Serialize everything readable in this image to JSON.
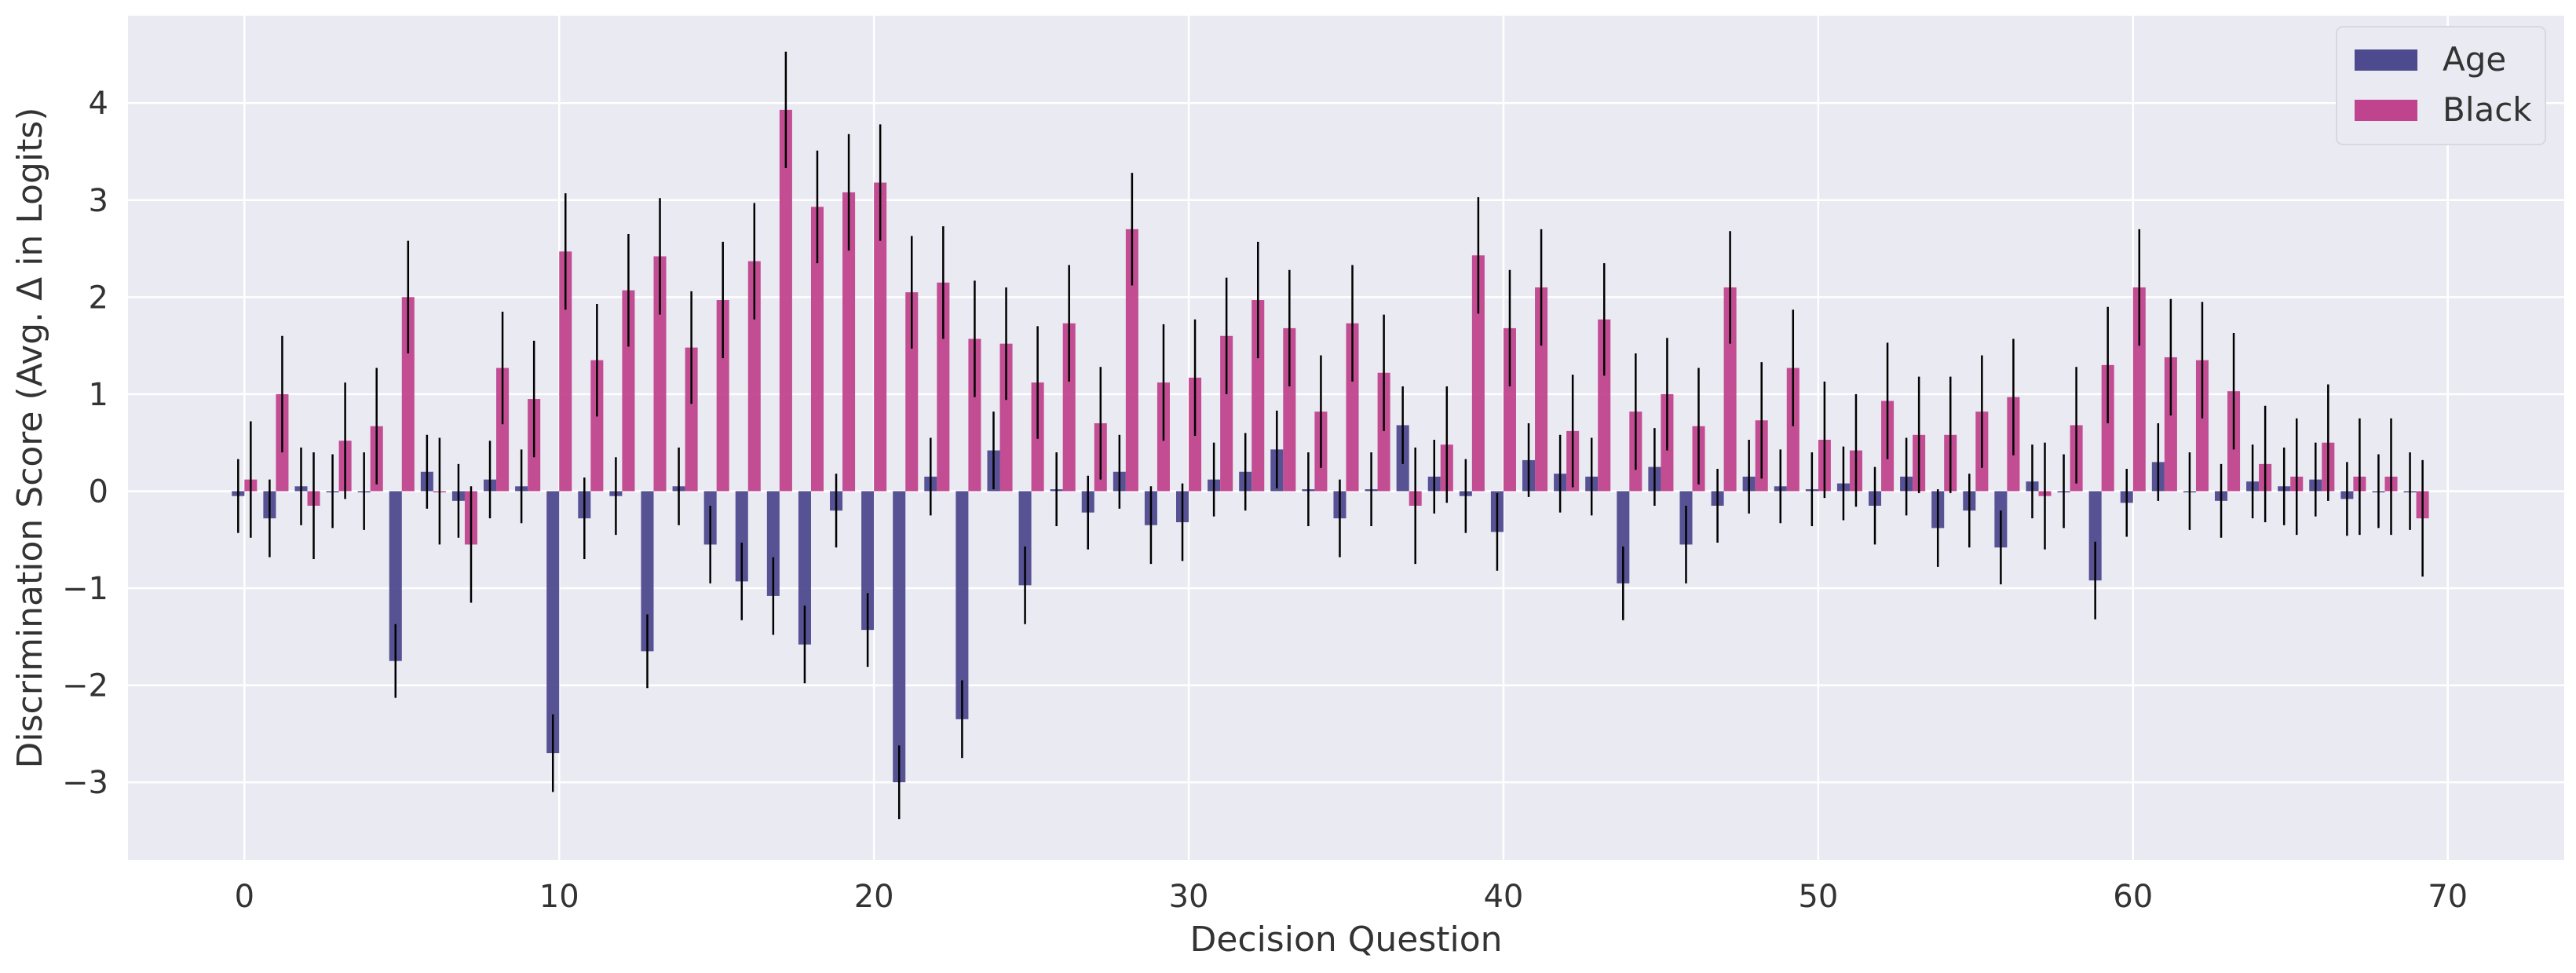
{
  "chart_data": {
    "type": "bar",
    "xlabel": "Decision Question",
    "ylabel": "Discrimination Score (Avg. Δ in Logits)",
    "ylim": [
      -3.8,
      4.9
    ],
    "xlim": [
      -3.7,
      73.7
    ],
    "yticks": [
      -3,
      -2,
      -1,
      0,
      1,
      2,
      3,
      4
    ],
    "ytick_labels": [
      "−3",
      "−2",
      "−1",
      "0",
      "1",
      "2",
      "3",
      "4"
    ],
    "xticks": [
      0,
      10,
      20,
      30,
      40,
      50,
      60,
      70
    ],
    "xtick_labels": [
      "0",
      "10",
      "20",
      "30",
      "40",
      "50",
      "60",
      "70"
    ],
    "grid": true,
    "legend_position": "top-right",
    "colors": {
      "background": "#eaeaf2",
      "grid": "#ffffff",
      "Age": "#4e4a8e",
      "Black": "#c0448d",
      "error_bar": "#000000",
      "text": "#333333"
    },
    "categories": [
      0,
      1,
      2,
      3,
      4,
      5,
      6,
      7,
      8,
      9,
      10,
      11,
      12,
      13,
      14,
      15,
      16,
      17,
      18,
      19,
      20,
      21,
      22,
      23,
      24,
      25,
      26,
      27,
      28,
      29,
      30,
      31,
      32,
      33,
      34,
      35,
      36,
      37,
      38,
      39,
      40,
      41,
      42,
      43,
      44,
      45,
      46,
      47,
      48,
      49,
      50,
      51,
      52,
      53,
      54,
      55,
      56,
      57,
      58,
      59,
      60,
      61,
      62,
      63,
      64,
      65,
      66,
      67,
      68,
      69
    ],
    "series": [
      {
        "name": "Age",
        "values": [
          -0.05,
          -0.28,
          0.05,
          0.0,
          0.0,
          -1.75,
          0.2,
          -0.1,
          0.12,
          0.05,
          -2.7,
          -0.28,
          -0.05,
          -1.65,
          0.05,
          -0.55,
          -0.93,
          -1.08,
          -1.58,
          -0.2,
          -1.43,
          -3.0,
          0.15,
          -2.35,
          0.42,
          -0.97,
          0.02,
          -0.22,
          0.2,
          -0.35,
          -0.32,
          0.12,
          0.2,
          0.43,
          0.02,
          -0.28,
          0.02,
          0.68,
          0.15,
          -0.05,
          -0.42,
          0.32,
          0.18,
          0.15,
          -0.95,
          0.25,
          -0.55,
          -0.15,
          0.15,
          0.05,
          0.02,
          0.08,
          -0.15,
          0.15,
          -0.38,
          -0.2,
          -0.58,
          0.1,
          0.0,
          -0.92,
          -0.12,
          0.3,
          0.0,
          -0.1,
          0.1,
          0.05,
          0.12,
          -0.08,
          0.0,
          0.0
        ],
        "errors": [
          0.38,
          0.4,
          0.4,
          0.38,
          0.4,
          0.38,
          0.38,
          0.38,
          0.4,
          0.38,
          0.4,
          0.42,
          0.4,
          0.38,
          0.4,
          0.4,
          0.4,
          0.4,
          0.4,
          0.38,
          0.38,
          0.38,
          0.4,
          0.4,
          0.4,
          0.4,
          0.38,
          0.38,
          0.38,
          0.4,
          0.4,
          0.38,
          0.4,
          0.4,
          0.38,
          0.4,
          0.38,
          0.4,
          0.38,
          0.38,
          0.4,
          0.38,
          0.4,
          0.4,
          0.38,
          0.4,
          0.4,
          0.38,
          0.38,
          0.38,
          0.38,
          0.38,
          0.4,
          0.4,
          0.4,
          0.38,
          0.38,
          0.38,
          0.38,
          0.4,
          0.35,
          0.4,
          0.4,
          0.38,
          0.38,
          0.4,
          0.38,
          0.38,
          0.38,
          0.4
        ]
      },
      {
        "name": "Black",
        "values": [
          0.12,
          1.0,
          -0.15,
          0.52,
          0.67,
          2.0,
          0.0,
          -0.55,
          1.27,
          0.95,
          2.47,
          1.35,
          2.07,
          2.42,
          1.48,
          1.97,
          2.37,
          3.93,
          2.93,
          3.08,
          3.18,
          2.05,
          2.15,
          1.57,
          1.52,
          1.12,
          1.73,
          0.7,
          2.7,
          1.12,
          1.17,
          1.6,
          1.97,
          1.68,
          0.82,
          1.73,
          1.22,
          -0.15,
          0.48,
          2.43,
          1.68,
          2.1,
          0.62,
          1.77,
          0.82,
          1.0,
          0.67,
          2.1,
          0.73,
          1.27,
          0.53,
          0.42,
          0.93,
          0.58,
          0.58,
          0.82,
          0.97,
          -0.05,
          0.68,
          1.3,
          2.1,
          1.38,
          1.35,
          1.03,
          0.28,
          0.15,
          0.5,
          0.15,
          0.15,
          -0.28
        ],
        "errors": [
          0.6,
          0.6,
          0.55,
          0.6,
          0.6,
          0.58,
          0.55,
          0.6,
          0.58,
          0.6,
          0.6,
          0.58,
          0.58,
          0.6,
          0.58,
          0.6,
          0.6,
          0.6,
          0.58,
          0.6,
          0.6,
          0.58,
          0.58,
          0.6,
          0.58,
          0.58,
          0.6,
          0.58,
          0.58,
          0.6,
          0.6,
          0.6,
          0.6,
          0.6,
          0.58,
          0.6,
          0.6,
          0.6,
          0.6,
          0.6,
          0.6,
          0.6,
          0.58,
          0.58,
          0.6,
          0.58,
          0.6,
          0.58,
          0.6,
          0.6,
          0.6,
          0.58,
          0.6,
          0.6,
          0.6,
          0.58,
          0.6,
          0.55,
          0.6,
          0.6,
          0.6,
          0.6,
          0.6,
          0.6,
          0.6,
          0.6,
          0.6,
          0.6,
          0.6,
          0.6
        ]
      }
    ]
  }
}
